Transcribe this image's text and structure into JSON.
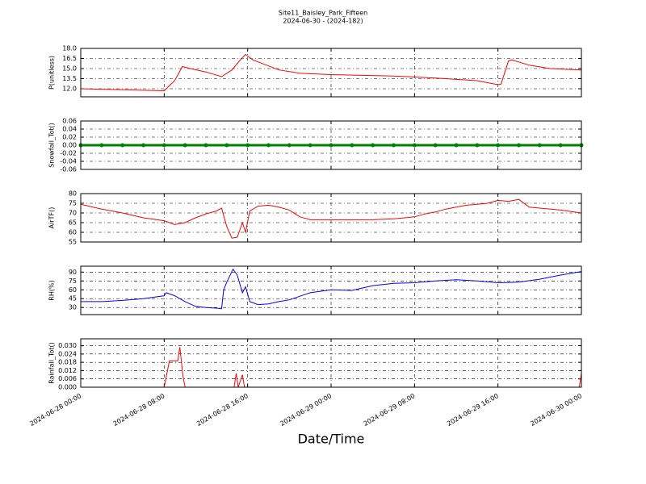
{
  "chart_data": [
    {
      "type": "line",
      "title": "Site11_Baisley_Park_Fifteen",
      "subtitle": "2024-06-30 - (2024-182)",
      "y_label": "P(unitless)",
      "xlim": [
        "2024-06-28 00:00",
        "2024-06-30 00:00"
      ],
      "xticks": [
        "2024-06-28 00:00",
        "2024-06-28 08:00",
        "2024-06-28 16:00",
        "2024-06-29 00:00",
        "2024-06-29 08:00",
        "2024-06-29 16:00",
        "2024-06-30 00:00"
      ],
      "ylim": [
        10.8,
        18.0
      ],
      "yticks": [
        {
          "value": 12,
          "label": "12.0"
        },
        {
          "value": 13.5,
          "label": "13.5"
        },
        {
          "value": 15,
          "label": "15.0"
        },
        {
          "value": 16.5,
          "label": "16.5"
        },
        {
          "value": 18,
          "label": "18.0"
        }
      ],
      "grid": true,
      "x": [
        "2024-06-28 00:00",
        "2024-06-28 04:00",
        "2024-06-28 08:00",
        "2024-06-28 09:00",
        "2024-06-28 09:45",
        "2024-06-28 10:30",
        "2024-06-28 12:00",
        "2024-06-28 13:30",
        "2024-06-28 14:30",
        "2024-06-28 15:18",
        "2024-06-28 15:48",
        "2024-06-28 16:30",
        "2024-06-28 18:00",
        "2024-06-28 19:00",
        "2024-06-28 21:00",
        "2024-06-29 00:00",
        "2024-06-29 06:00",
        "2024-06-29 10:00",
        "2024-06-29 14:00",
        "2024-06-29 16:00",
        "2024-06-29 16:18",
        "2024-06-29 17:00",
        "2024-06-29 17:18",
        "2024-06-29 19:00",
        "2024-06-29 21:00",
        "2024-06-30 00:00"
      ],
      "series": [
        {
          "name": "P(unitless)",
          "color": "#ff0000",
          "values": [
            12.0,
            11.85,
            11.7,
            13.2,
            15.3,
            15.0,
            14.5,
            13.8,
            14.8,
            16.3,
            17.1,
            16.3,
            15.4,
            14.8,
            14.3,
            14.1,
            13.9,
            13.6,
            13.2,
            12.6,
            12.7,
            16.1,
            16.3,
            15.5,
            15.0,
            14.8
          ]
        }
      ]
    },
    {
      "type": "scatter-line",
      "y_label": "Snowfall_Tot()",
      "xlim": [
        "2024-06-28 00:00",
        "2024-06-30 00:00"
      ],
      "xticks": [
        "2024-06-28 00:00",
        "2024-06-28 08:00",
        "2024-06-28 16:00",
        "2024-06-29 00:00",
        "2024-06-29 08:00",
        "2024-06-29 16:00",
        "2024-06-30 00:00"
      ],
      "ylim": [
        -0.06,
        0.06
      ],
      "yticks": [
        {
          "value": -0.06,
          "label": "-0.06"
        },
        {
          "value": -0.04,
          "label": "-0.04"
        },
        {
          "value": -0.02,
          "label": "-0.02"
        },
        {
          "value": 0,
          "label": "0.00"
        },
        {
          "value": 0.02,
          "label": "0.02"
        },
        {
          "value": 0.04,
          "label": "0.04"
        },
        {
          "value": 0.06,
          "label": "0.06"
        }
      ],
      "grid": true,
      "x": [
        "2024-06-28 00:00",
        "2024-06-28 02:00",
        "2024-06-28 04:00",
        "2024-06-28 06:00",
        "2024-06-28 08:00",
        "2024-06-28 10:00",
        "2024-06-28 12:00",
        "2024-06-28 14:00",
        "2024-06-28 16:00",
        "2024-06-28 18:00",
        "2024-06-28 20:00",
        "2024-06-28 22:00",
        "2024-06-29 00:00",
        "2024-06-29 02:00",
        "2024-06-29 04:00",
        "2024-06-29 06:00",
        "2024-06-29 08:00",
        "2024-06-29 10:00",
        "2024-06-29 12:00",
        "2024-06-29 14:00",
        "2024-06-29 16:00",
        "2024-06-29 18:00",
        "2024-06-29 20:00",
        "2024-06-29 22:00",
        "2024-06-30 00:00"
      ],
      "series": [
        {
          "name": "Snowfall_Tot()",
          "color": "#008000",
          "values": [
            0,
            0,
            0,
            0,
            0,
            0,
            0,
            0,
            0,
            0,
            0,
            0,
            0,
            0,
            0,
            0,
            0,
            0,
            0,
            0,
            0,
            0,
            0,
            0,
            0
          ]
        }
      ]
    },
    {
      "type": "line",
      "y_label": "AirTF()",
      "xlim": [
        "2024-06-28 00:00",
        "2024-06-30 00:00"
      ],
      "xticks": [
        "2024-06-28 00:00",
        "2024-06-28 08:00",
        "2024-06-28 16:00",
        "2024-06-29 00:00",
        "2024-06-29 08:00",
        "2024-06-29 16:00",
        "2024-06-30 00:00"
      ],
      "ylim": [
        55,
        80
      ],
      "yticks": [
        55,
        60,
        65,
        70,
        75,
        80
      ],
      "grid": true,
      "x": [
        "2024-06-28 00:00",
        "2024-06-28 02:00",
        "2024-06-28 04:00",
        "2024-06-28 06:00",
        "2024-06-28 08:00",
        "2024-06-28 09:00",
        "2024-06-28 10:00",
        "2024-06-28 11:00",
        "2024-06-28 12:00",
        "2024-06-28 13:00",
        "2024-06-28 13:30",
        "2024-06-28 14:00",
        "2024-06-28 14:30",
        "2024-06-28 15:00",
        "2024-06-28 15:30",
        "2024-06-28 15:48",
        "2024-06-28 16:12",
        "2024-06-28 17:00",
        "2024-06-28 18:00",
        "2024-06-28 19:00",
        "2024-06-28 20:00",
        "2024-06-28 21:00",
        "2024-06-28 22:00",
        "2024-06-29 00:00",
        "2024-06-29 02:00",
        "2024-06-29 04:00",
        "2024-06-29 06:00",
        "2024-06-29 08:00",
        "2024-06-29 09:00",
        "2024-06-29 10:00",
        "2024-06-29 11:00",
        "2024-06-29 12:00",
        "2024-06-29 13:00",
        "2024-06-29 14:00",
        "2024-06-29 15:00",
        "2024-06-29 16:00",
        "2024-06-29 17:00",
        "2024-06-29 18:00",
        "2024-06-29 19:00",
        "2024-06-29 20:00",
        "2024-06-29 22:00",
        "2024-06-30 00:00"
      ],
      "series": [
        {
          "name": "AirTF()",
          "color": "#ff0000",
          "values": [
            74.5,
            72,
            70,
            67.5,
            66,
            64,
            65,
            67.5,
            69.5,
            71,
            72.5,
            63,
            57,
            57.5,
            65,
            60,
            71,
            73.5,
            74,
            73,
            71.5,
            68,
            66.5,
            66.5,
            66.5,
            66.5,
            67,
            68,
            69.5,
            70.5,
            72,
            73,
            74,
            74.5,
            75,
            76.5,
            76,
            77,
            73,
            72.5,
            71.5,
            70
          ]
        }
      ]
    },
    {
      "type": "line",
      "y_label": "RH(%)",
      "xlim": [
        "2024-06-28 00:00",
        "2024-06-30 00:00"
      ],
      "xticks": [
        "2024-06-28 00:00",
        "2024-06-28 08:00",
        "2024-06-28 16:00",
        "2024-06-29 00:00",
        "2024-06-29 08:00",
        "2024-06-29 16:00",
        "2024-06-30 00:00"
      ],
      "ylim": [
        18,
        100
      ],
      "yticks": [
        30,
        45,
        60,
        75,
        90
      ],
      "grid": true,
      "x": [
        "2024-06-28 00:00",
        "2024-06-28 02:00",
        "2024-06-28 04:00",
        "2024-06-28 06:00",
        "2024-06-28 08:00",
        "2024-06-28 08:12",
        "2024-06-28 09:00",
        "2024-06-28 10:00",
        "2024-06-28 11:00",
        "2024-06-28 12:00",
        "2024-06-28 13:00",
        "2024-06-28 13:30",
        "2024-06-28 13:42",
        "2024-06-28 14:00",
        "2024-06-28 14:36",
        "2024-06-28 15:00",
        "2024-06-28 15:30",
        "2024-06-28 15:48",
        "2024-06-28 16:12",
        "2024-06-28 17:00",
        "2024-06-28 18:00",
        "2024-06-28 19:00",
        "2024-06-28 20:00",
        "2024-06-28 22:00",
        "2024-06-29 00:00",
        "2024-06-29 02:00",
        "2024-06-29 04:00",
        "2024-06-29 06:00",
        "2024-06-29 08:00",
        "2024-06-29 10:00",
        "2024-06-29 12:00",
        "2024-06-29 14:00",
        "2024-06-29 16:00",
        "2024-06-29 18:00",
        "2024-06-29 20:00",
        "2024-06-29 22:00",
        "2024-06-30 00:00"
      ],
      "series": [
        {
          "name": "RH(%)",
          "color": "#0000ff",
          "values": [
            40,
            40,
            42,
            45,
            50,
            55,
            50,
            40,
            32,
            30,
            29,
            28,
            60,
            73,
            95,
            85,
            55,
            65,
            40,
            35,
            36,
            40,
            43,
            55,
            60,
            59,
            67,
            71,
            72,
            75,
            77,
            75,
            72,
            73,
            78,
            85,
            91
          ]
        }
      ]
    },
    {
      "type": "line",
      "y_label": "Rainfall_Tot()",
      "x_label": "Date/Time",
      "xlim": [
        "2024-06-28 00:00",
        "2024-06-30 00:00"
      ],
      "xticks": [
        "2024-06-28 00:00",
        "2024-06-28 08:00",
        "2024-06-28 16:00",
        "2024-06-29 00:00",
        "2024-06-29 08:00",
        "2024-06-29 16:00",
        "2024-06-30 00:00"
      ],
      "ylim": [
        0,
        0.035
      ],
      "yticks": [
        {
          "value": 0,
          "label": "0.000"
        },
        {
          "value": 0.006,
          "label": "0.006"
        },
        {
          "value": 0.012,
          "label": "0.012"
        },
        {
          "value": 0.018,
          "label": "0.018"
        },
        {
          "value": 0.024,
          "label": "0.024"
        },
        {
          "value": 0.03,
          "label": "0.030"
        }
      ],
      "grid": true,
      "x": [
        "2024-06-28 00:00",
        "2024-06-28 08:00",
        "2024-06-28 08:30",
        "2024-06-28 09:18",
        "2024-06-28 09:30",
        "2024-06-28 09:48",
        "2024-06-28 10:00",
        "2024-06-28 14:42",
        "2024-06-28 14:54",
        "2024-06-28 15:06",
        "2024-06-28 15:30",
        "2024-06-28 15:42",
        "2024-06-29 23:48",
        "2024-06-30 00:00"
      ],
      "series": [
        {
          "name": "Rainfall_Tot()",
          "color": "#ff0000",
          "values": [
            0,
            0,
            0.019,
            0.019,
            0.029,
            0.008,
            0,
            0,
            0.01,
            0,
            0.009,
            0,
            0,
            0.01
          ]
        }
      ]
    }
  ]
}
